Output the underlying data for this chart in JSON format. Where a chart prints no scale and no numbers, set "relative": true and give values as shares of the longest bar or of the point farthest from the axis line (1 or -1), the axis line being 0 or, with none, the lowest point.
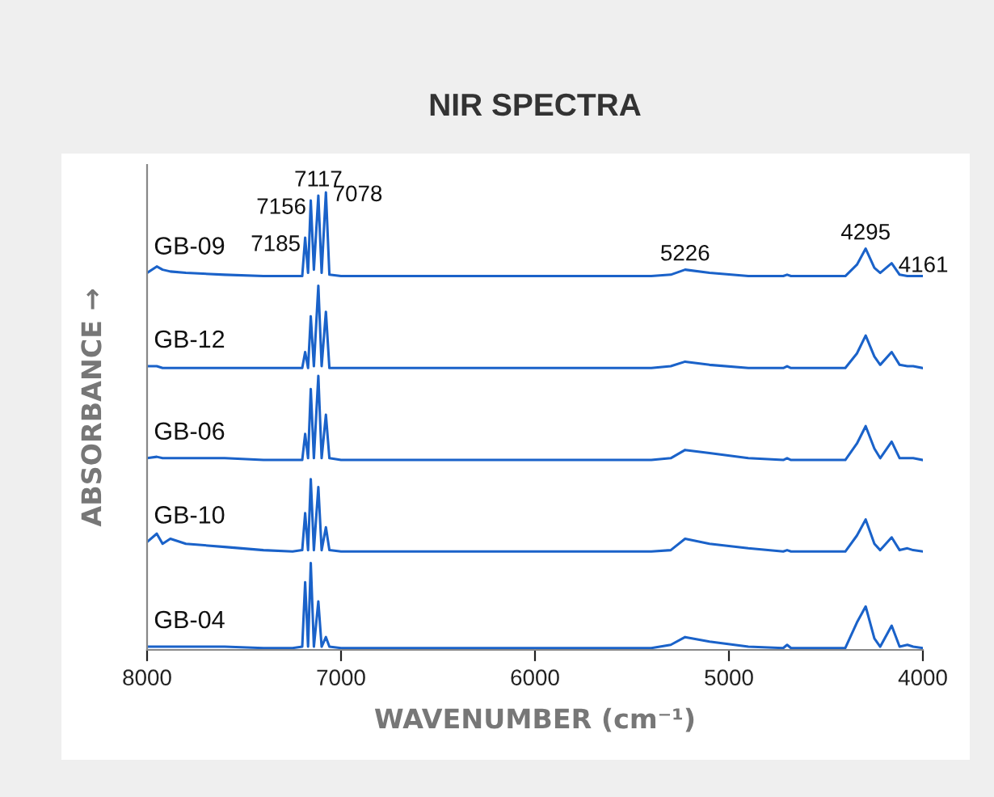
{
  "chart_data": {
    "type": "line",
    "title": "NIR SPECTRA",
    "xlabel": "WAVENUMBER (cm⁻¹)",
    "ylabel": "ABSORBANCE →",
    "relative": true,
    "tick_labels": "x",
    "grid": false,
    "legend": false,
    "xlim": [
      8000,
      4000
    ],
    "xticks": [
      8000,
      7000,
      6000,
      5000,
      4000
    ],
    "x": [
      8000,
      7950,
      7920,
      7880,
      7800,
      7600,
      7400,
      7250,
      7200,
      7185,
      7170,
      7156,
      7140,
      7117,
      7100,
      7078,
      7060,
      7000,
      6500,
      6000,
      5400,
      5300,
      5226,
      5100,
      4900,
      4720,
      4700,
      4680,
      4500,
      4400,
      4340,
      4295,
      4250,
      4220,
      4161,
      4120,
      4080,
      4050,
      4000
    ],
    "series": [
      {
        "name": "GB-09",
        "color": "#1a62c9",
        "values": [
          0.824,
          0.838,
          0.831,
          0.827,
          0.824,
          0.82,
          0.817,
          0.817,
          0.817,
          0.901,
          0.824,
          0.982,
          0.831,
          0.993,
          0.824,
          1.0,
          0.82,
          0.817,
          0.817,
          0.817,
          0.817,
          0.82,
          0.831,
          0.824,
          0.817,
          0.817,
          0.82,
          0.817,
          0.817,
          0.817,
          0.842,
          0.877,
          0.835,
          0.824,
          0.845,
          0.82,
          0.817,
          0.817,
          0.817
        ]
      },
      {
        "name": "GB-12",
        "color": "#1a62c9",
        "values": [
          0.62,
          0.62,
          0.616,
          0.616,
          0.616,
          0.616,
          0.616,
          0.616,
          0.616,
          0.651,
          0.616,
          0.729,
          0.62,
          0.796,
          0.62,
          0.739,
          0.616,
          0.616,
          0.616,
          0.616,
          0.616,
          0.62,
          0.63,
          0.623,
          0.616,
          0.616,
          0.62,
          0.616,
          0.616,
          0.616,
          0.648,
          0.687,
          0.641,
          0.623,
          0.651,
          0.623,
          0.62,
          0.62,
          0.616
        ]
      },
      {
        "name": "GB-06",
        "color": "#1a62c9",
        "values": [
          0.419,
          0.422,
          0.419,
          0.419,
          0.419,
          0.419,
          0.415,
          0.415,
          0.415,
          0.472,
          0.419,
          0.57,
          0.419,
          0.599,
          0.419,
          0.514,
          0.419,
          0.415,
          0.415,
          0.415,
          0.415,
          0.419,
          0.437,
          0.43,
          0.419,
          0.415,
          0.419,
          0.415,
          0.415,
          0.415,
          0.451,
          0.489,
          0.44,
          0.419,
          0.455,
          0.419,
          0.419,
          0.419,
          0.415
        ]
      },
      {
        "name": "GB-10",
        "color": "#1a62c9",
        "values": [
          0.236,
          0.254,
          0.232,
          0.243,
          0.232,
          0.225,
          0.218,
          0.215,
          0.218,
          0.299,
          0.218,
          0.373,
          0.218,
          0.356,
          0.218,
          0.268,
          0.218,
          0.215,
          0.215,
          0.215,
          0.215,
          0.218,
          0.243,
          0.232,
          0.222,
          0.215,
          0.218,
          0.215,
          0.215,
          0.215,
          0.25,
          0.285,
          0.232,
          0.218,
          0.246,
          0.218,
          0.222,
          0.218,
          0.215
        ]
      },
      {
        "name": "GB-04",
        "color": "#1a62c9",
        "values": [
          0.007,
          0.007,
          0.007,
          0.007,
          0.007,
          0.007,
          0.004,
          0.004,
          0.007,
          0.148,
          0.007,
          0.19,
          0.007,
          0.106,
          0.007,
          0.028,
          0.007,
          0.004,
          0.004,
          0.004,
          0.004,
          0.011,
          0.028,
          0.018,
          0.007,
          0.004,
          0.011,
          0.004,
          0.004,
          0.004,
          0.06,
          0.095,
          0.025,
          0.007,
          0.053,
          0.007,
          0.011,
          0.007,
          0.004
        ]
      }
    ],
    "annotations": [
      {
        "text": "7185",
        "x": 7185,
        "y": 0.901
      },
      {
        "text": "7156",
        "x": 7156,
        "y": 0.982
      },
      {
        "text": "7117",
        "x": 7117,
        "y": 0.993
      },
      {
        "text": "7078",
        "x": 7078,
        "y": 1.0
      },
      {
        "text": "5226",
        "x": 5226,
        "y": 0.831
      },
      {
        "text": "4295",
        "x": 4295,
        "y": 0.877
      },
      {
        "text": "4161",
        "x": 4161,
        "y": 0.845
      }
    ]
  }
}
